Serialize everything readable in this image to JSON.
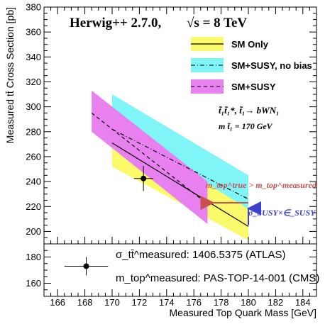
{
  "chart_data": {
    "type": "line",
    "title": "Herwig++ 2.7.0,",
    "title_energy": "√s = 8 TeV",
    "xlabel": "Measured Top Quark Mass [GeV]",
    "ylabel": "Measured tt̄ Cross Section [pb]",
    "xlim": [
      165,
      185
    ],
    "ylim_main": [
      190,
      380
    ],
    "ylim_sub": [
      150,
      190
    ],
    "x_ticks": [
      "166",
      "168",
      "170",
      "172",
      "174",
      "176",
      "178",
      "180",
      "182",
      "184"
    ],
    "y_ticks_main": [
      "200",
      "220",
      "240",
      "260",
      "280",
      "300",
      "320",
      "340",
      "360",
      "380"
    ],
    "y_ticks_sub": [
      "160",
      "180"
    ],
    "series": [
      {
        "name": "SM Only",
        "style": "solid",
        "color": "#000000",
        "x": [
          170,
          180
        ],
        "y": [
          271,
          204
        ]
      },
      {
        "name": "SM+SUSY, no bias",
        "style": "dashdot",
        "color": "#000000",
        "x": [
          170,
          180
        ],
        "y": [
          282,
          226
        ]
      },
      {
        "name": "SM+SUSY",
        "style": "dashed",
        "color": "#000000",
        "x": [
          168.5,
          177
        ],
        "y": [
          295,
          222
        ]
      }
    ],
    "bands": [
      {
        "name": "SM+SUSY, no bias",
        "color": "#7ff5f8",
        "x": [
          170,
          180
        ],
        "upper": [
          310,
          245
        ],
        "lower": [
          258,
          207
        ]
      },
      {
        "name": "SM Only",
        "color": "#fbfa6a",
        "x": [
          170,
          180
        ],
        "upper": [
          285,
          218
        ],
        "lower": [
          252,
          193
        ]
      },
      {
        "name": "SM+SUSY",
        "color": "#e880f0",
        "x": [
          168.5,
          177
        ],
        "upper": [
          313,
          240
        ],
        "lower": [
          280,
          206
        ]
      }
    ],
    "data_point": {
      "x": 172.3,
      "y": 242.5,
      "xerr": 0.7,
      "yerr": 10
    },
    "sub_point": {
      "x": 168.1,
      "y": 173,
      "xerr": 1.6,
      "yerr": 7
    },
    "arrow_horizontal": {
      "from": [
        180,
        223
      ],
      "to": [
        177,
        223
      ],
      "color": "#c85050"
    },
    "arrow_vertical": {
      "from": [
        180,
        205
      ],
      "to": [
        180,
        223
      ],
      "color": "#4040d0"
    },
    "annotations": {
      "stop_decay": "t̃₁t̃₁*, t̃₁→ bWN₁",
      "stop_mass": "m t̃₁ = 170 GeV",
      "mass_relation": "m_top^true > m_top^measured",
      "sigma_label": "σ_SUSY×∈_SUSY",
      "sigma_measured_label": "σ_tt̄^measured: 1406.5375 (ATLAS)",
      "mtop_measured_label": "m_top^measured: PAS-TOP-14-001 (CMS)"
    }
  }
}
